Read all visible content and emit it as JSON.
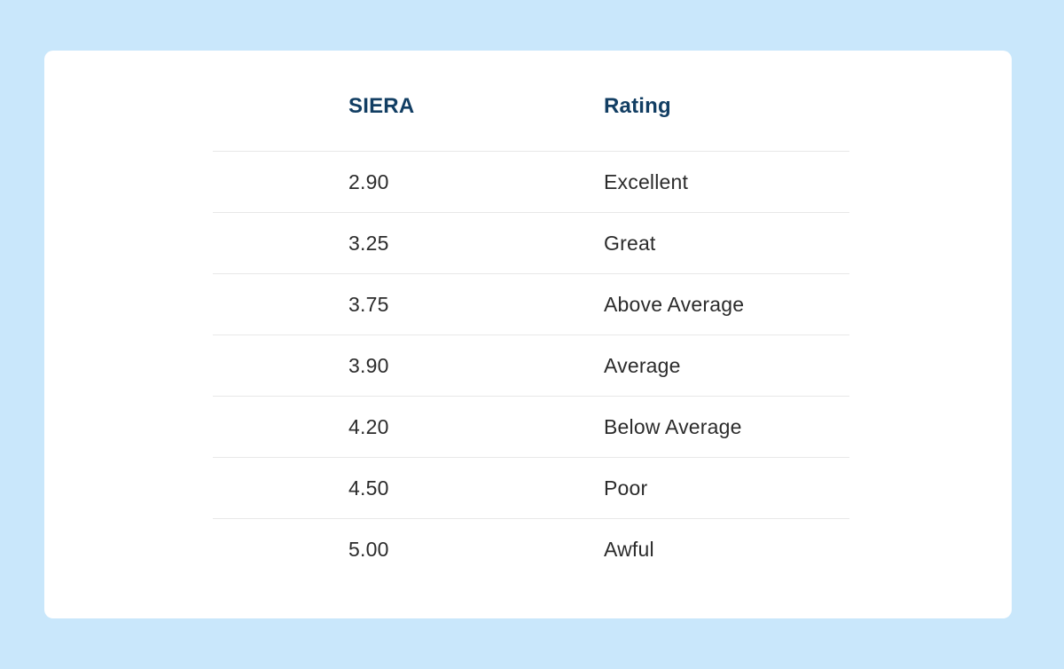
{
  "colors": {
    "page_background": "#c9e7fb",
    "card_background": "#ffffff",
    "header_text": "#123e63",
    "body_text": "#2b2b2b",
    "divider": "#e8e8e8"
  },
  "table": {
    "columns": {
      "siera": "SIERA",
      "rating": "Rating"
    },
    "rows": [
      {
        "siera": "2.90",
        "rating": "Excellent"
      },
      {
        "siera": "3.25",
        "rating": "Great"
      },
      {
        "siera": "3.75",
        "rating": "Above Average"
      },
      {
        "siera": "3.90",
        "rating": "Average"
      },
      {
        "siera": "4.20",
        "rating": "Below Average"
      },
      {
        "siera": "4.50",
        "rating": "Poor"
      },
      {
        "siera": "5.00",
        "rating": "Awful"
      }
    ]
  },
  "chart_data": {
    "type": "table",
    "columns": [
      "SIERA",
      "Rating"
    ],
    "rows": [
      [
        "2.90",
        "Excellent"
      ],
      [
        "3.25",
        "Great"
      ],
      [
        "3.75",
        "Above Average"
      ],
      [
        "3.90",
        "Average"
      ],
      [
        "4.20",
        "Below Average"
      ],
      [
        "4.50",
        "Poor"
      ],
      [
        "5.00",
        "Awful"
      ]
    ],
    "layout_hints": {
      "header_style": "bold navy text on white",
      "row_dividers": true,
      "column_dividers": false,
      "alignment": "left"
    }
  }
}
